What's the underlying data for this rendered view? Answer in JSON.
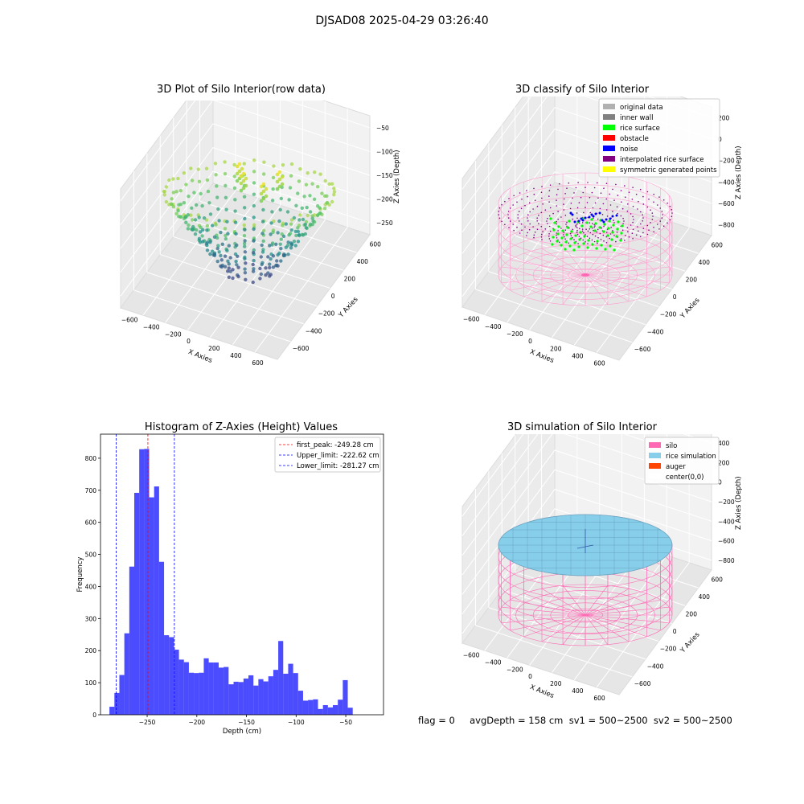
{
  "figure": {
    "suptitle": "DJSAD08 2025-04-29 03:26:40",
    "footer": "flag = 0     avgDepth = 158 cm  sv1 = 500~2500  sv2 = 500~2500"
  },
  "panels": {
    "raw": {
      "title": "3D Plot of Silo Interior(row data)",
      "xlabel": "X Axies",
      "ylabel": "Y Axies",
      "zlabel": "Z Axies (Depth)",
      "xticks": [
        "−600",
        "−400",
        "−200",
        "0",
        "200",
        "400",
        "600"
      ],
      "yticks": [
        "600",
        "400",
        "200",
        "0",
        "−200",
        "−400",
        "−600"
      ],
      "zticks": [
        "−50",
        "−100",
        "−150",
        "−200",
        "−250"
      ]
    },
    "classify": {
      "title": "3D classify of Silo Interior",
      "xlabel": "X Axies",
      "ylabel": "Y Axies",
      "zlabel": "Z Axies (Depth)",
      "xticks": [
        "−600",
        "−400",
        "−200",
        "0",
        "200",
        "400",
        "600"
      ],
      "yticks": [
        "600",
        "400",
        "200",
        "0",
        "−200",
        "−400",
        "−600"
      ],
      "zticks": [
        "200",
        "0",
        "−200",
        "−400",
        "−600",
        "−800"
      ],
      "legend": [
        {
          "label": "original data",
          "color": "#b0b0b0"
        },
        {
          "label": "inner wall",
          "color": "#808080"
        },
        {
          "label": "rice surface",
          "color": "#00ff00"
        },
        {
          "label": "obstacle",
          "color": "#ff0000"
        },
        {
          "label": "noise",
          "color": "#0000ff"
        },
        {
          "label": "interpolated rice surface",
          "color": "#800080"
        },
        {
          "label": "symmetric generated points",
          "color": "#ffff00"
        }
      ]
    },
    "simulation": {
      "title": "3D simulation of Silo Interior",
      "xlabel": "X Axies",
      "ylabel": "Y Axies",
      "zlabel": "Z Axies (Depth)",
      "xticks": [
        "−600",
        "−400",
        "−200",
        "0",
        "200",
        "400",
        "600"
      ],
      "yticks": [
        "600",
        "400",
        "200",
        "0",
        "−200",
        "−400",
        "−600"
      ],
      "zticks": [
        "400",
        "200",
        "0",
        "−200",
        "−400",
        "−600",
        "−800"
      ],
      "legend": [
        {
          "label": "silo",
          "color": "#ff69b4"
        },
        {
          "label": "rice simulation",
          "color": "#87ceeb"
        },
        {
          "label": "auger",
          "color": "#ff4500"
        },
        {
          "label": "center(0,0)",
          "color": "#ffffff"
        }
      ]
    }
  },
  "chart_data": {
    "type": "bar",
    "title": "Histogram of Z-Axies (Height) Values",
    "xlabel": "Depth (cm)",
    "ylabel": "Frequency",
    "xlim": [
      -297,
      -12
    ],
    "ylim": [
      0,
      875
    ],
    "xticks": [
      -250,
      -200,
      -150,
      -100,
      -50
    ],
    "xtick_labels": [
      "−250",
      "−200",
      "−150",
      "−100",
      "−50"
    ],
    "yticks": [
      0,
      100,
      200,
      300,
      400,
      500,
      600,
      700,
      800
    ],
    "bar_color": "#0000ff",
    "bin_start": -288,
    "bin_width": 5,
    "values": [
      25,
      68,
      124,
      254,
      462,
      692,
      828,
      829,
      678,
      712,
      477,
      248,
      242,
      203,
      172,
      164,
      131,
      130,
      131,
      176,
      163,
      163,
      147,
      149,
      95,
      103,
      102,
      113,
      123,
      91,
      111,
      104,
      120,
      140,
      230,
      128,
      159,
      130,
      75,
      44,
      46,
      48,
      18,
      30,
      23,
      30,
      47,
      108,
      22
    ],
    "vlines": [
      {
        "label": "first_peak: -249.28 cm",
        "x": -249.28,
        "color": "#ff0000"
      },
      {
        "label": "Upper_limit: -222.62 cm",
        "x": -222.62,
        "color": "#0000ff"
      },
      {
        "label": "Lower_limit: -281.27 cm",
        "x": -281.27,
        "color": "#0000ff"
      }
    ],
    "legend_position": "top-right",
    "grid": false
  }
}
